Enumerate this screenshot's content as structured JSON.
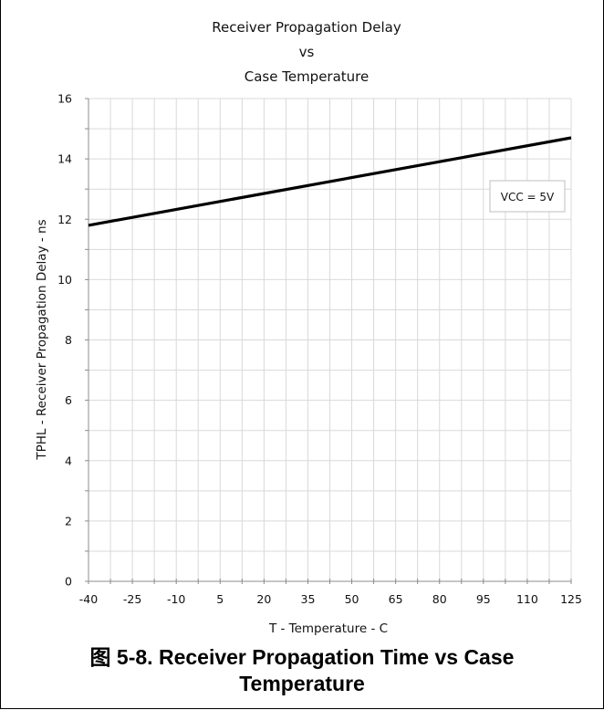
{
  "chart_data": {
    "type": "line",
    "title_lines": [
      "Receiver Propagation Delay",
      "vs",
      "Case Temperature"
    ],
    "xlabel": "T - Temperature - C",
    "ylabel": "TPHL - Receiver Propagation Delay - ns",
    "x_ticks": [
      "-40",
      "-25",
      "-10",
      "5",
      "20",
      "35",
      "50",
      "65",
      "80",
      "95",
      "110",
      "125"
    ],
    "y_ticks": [
      "0",
      "2",
      "4",
      "6",
      "8",
      "10",
      "12",
      "14",
      "16"
    ],
    "xlim": [
      -40,
      125
    ],
    "ylim": [
      0,
      16
    ],
    "grid": true,
    "series": [
      {
        "x": [
          -40,
          125
        ],
        "y": [
          11.8,
          14.7
        ],
        "color": "#000000"
      }
    ],
    "annotation": "VCC = 5V"
  },
  "caption": {
    "line1": "图 5-8. Receiver Propagation Time vs Case",
    "line2": "Temperature"
  }
}
